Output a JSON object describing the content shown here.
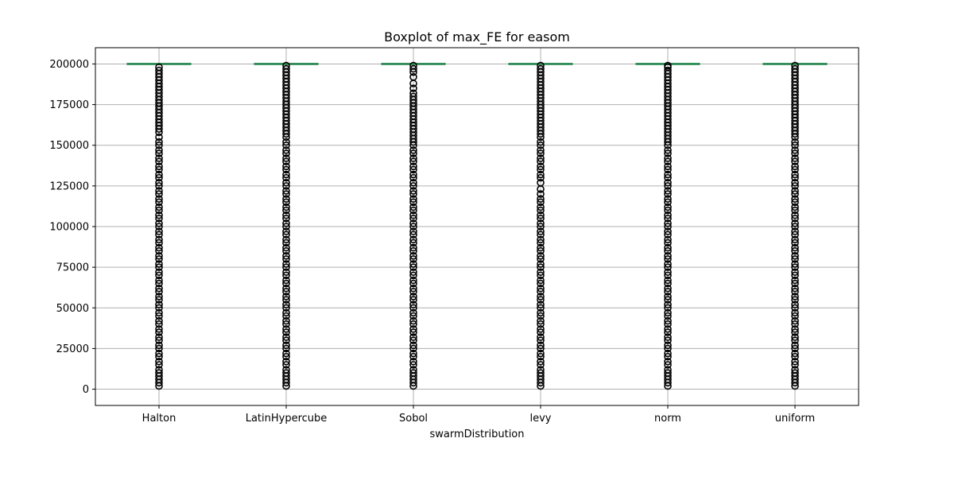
{
  "chart_data": {
    "type": "boxplot",
    "title": "Boxplot of max_FE for easom",
    "xlabel": "swarmDistribution",
    "ylabel": "",
    "categories": [
      "Halton",
      "LatinHypercube",
      "Sobol",
      "levy",
      "norm",
      "uniform"
    ],
    "ylim": [
      -10000,
      210000
    ],
    "yticks": [
      0,
      25000,
      50000,
      75000,
      100000,
      125000,
      150000,
      175000,
      200000
    ],
    "grid": true,
    "colors": {
      "box": "#2e8b57",
      "outlier": "#000000",
      "grid": "#b0b0b0"
    },
    "series": [
      {
        "category": "Halton",
        "box": {
          "min": 200000,
          "q1": 200000,
          "median": 200000,
          "q3": 200000,
          "max": 200000
        },
        "outliers": [
          198000,
          196000,
          194000,
          192000,
          190000,
          188000,
          186000,
          184000,
          182000,
          180000,
          178000,
          176000,
          174000,
          172000,
          170000,
          168000,
          166000,
          164000,
          162000,
          160000,
          158000,
          155000,
          152000,
          150000,
          147000,
          145000,
          142000,
          140000,
          137000,
          135000,
          132000,
          130000,
          127000,
          125000,
          122000,
          120000,
          117000,
          115000,
          112000,
          110000,
          107000,
          105000,
          102000,
          100000,
          97000,
          95000,
          92000,
          90000,
          87000,
          85000,
          82000,
          80000,
          77000,
          75000,
          72000,
          70000,
          67000,
          65000,
          62000,
          60000,
          57000,
          55000,
          52000,
          50000,
          47000,
          45000,
          42000,
          40000,
          37000,
          35000,
          32000,
          30000,
          27000,
          25000,
          22000,
          20000,
          17000,
          15000,
          12000,
          10000,
          8000,
          6000,
          4000,
          2000
        ]
      },
      {
        "category": "LatinHypercube",
        "box": {
          "min": 200000,
          "q1": 200000,
          "median": 200000,
          "q3": 200000,
          "max": 200000
        },
        "outliers": [
          199000,
          197000,
          195000,
          193000,
          191000,
          189000,
          187000,
          185000,
          183000,
          181000,
          179000,
          177000,
          175000,
          173000,
          171000,
          169000,
          167000,
          165000,
          163000,
          161000,
          159000,
          157000,
          155000,
          152000,
          150000,
          147000,
          145000,
          142000,
          140000,
          137000,
          135000,
          132000,
          130000,
          127000,
          125000,
          122000,
          120000,
          117000,
          115000,
          112000,
          110000,
          107000,
          105000,
          102000,
          100000,
          97000,
          95000,
          92000,
          90000,
          87000,
          85000,
          82000,
          80000,
          77000,
          75000,
          72000,
          70000,
          67000,
          65000,
          62000,
          60000,
          57000,
          55000,
          52000,
          50000,
          47000,
          45000,
          42000,
          40000,
          37000,
          35000,
          32000,
          30000,
          27000,
          25000,
          22000,
          20000,
          17000,
          15000,
          12000,
          10000,
          8000,
          6000,
          4000,
          2000
        ]
      },
      {
        "category": "Sobol",
        "box": {
          "min": 200000,
          "q1": 200000,
          "median": 200000,
          "q3": 200000,
          "max": 200000
        },
        "outliers": [
          199000,
          197000,
          195000,
          192000,
          188000,
          185000,
          182000,
          180000,
          178000,
          176000,
          174000,
          172000,
          170000,
          168000,
          166000,
          164000,
          162000,
          160000,
          158000,
          156000,
          154000,
          152000,
          150000,
          147000,
          145000,
          142000,
          140000,
          137000,
          135000,
          132000,
          130000,
          127000,
          125000,
          122000,
          120000,
          117000,
          115000,
          112000,
          110000,
          107000,
          105000,
          102000,
          100000,
          97000,
          95000,
          92000,
          90000,
          87000,
          85000,
          82000,
          80000,
          77000,
          75000,
          72000,
          70000,
          67000,
          65000,
          62000,
          60000,
          57000,
          55000,
          52000,
          50000,
          47000,
          45000,
          42000,
          40000,
          37000,
          35000,
          32000,
          30000,
          27000,
          25000,
          22000,
          20000,
          17000,
          15000,
          12000,
          10000,
          8000,
          6000,
          4000,
          2000
        ]
      },
      {
        "category": "levy",
        "box": {
          "min": 200000,
          "q1": 200000,
          "median": 200000,
          "q3": 200000,
          "max": 200000
        },
        "outliers": [
          199000,
          197000,
          195000,
          193000,
          191000,
          189000,
          187000,
          185000,
          183000,
          181000,
          179000,
          177000,
          175000,
          173000,
          171000,
          169000,
          167000,
          165000,
          163000,
          161000,
          159000,
          157000,
          155000,
          152000,
          150000,
          147000,
          145000,
          142000,
          140000,
          137000,
          135000,
          132000,
          130000,
          127000,
          123000,
          120000,
          117000,
          115000,
          112000,
          110000,
          107000,
          105000,
          102000,
          100000,
          97000,
          95000,
          92000,
          90000,
          87000,
          85000,
          82000,
          80000,
          77000,
          75000,
          72000,
          70000,
          67000,
          65000,
          62000,
          60000,
          57000,
          55000,
          52000,
          50000,
          47000,
          45000,
          42000,
          40000,
          37000,
          35000,
          32000,
          30000,
          27000,
          25000,
          22000,
          20000,
          17000,
          15000,
          12000,
          10000,
          8000,
          6000,
          4000,
          2000
        ]
      },
      {
        "category": "norm",
        "box": {
          "min": 200000,
          "q1": 200000,
          "median": 200000,
          "q3": 200000,
          "max": 200000
        },
        "outliers": [
          199000,
          198000,
          196000,
          194000,
          192000,
          190000,
          188000,
          186000,
          184000,
          182000,
          180000,
          178000,
          176000,
          174000,
          172000,
          170000,
          168000,
          166000,
          164000,
          162000,
          160000,
          158000,
          156000,
          154000,
          152000,
          150000,
          147000,
          145000,
          142000,
          140000,
          137000,
          135000,
          132000,
          130000,
          127000,
          125000,
          122000,
          120000,
          117000,
          115000,
          112000,
          110000,
          107000,
          105000,
          102000,
          100000,
          97000,
          95000,
          92000,
          90000,
          87000,
          85000,
          82000,
          80000,
          77000,
          75000,
          72000,
          70000,
          67000,
          65000,
          62000,
          60000,
          57000,
          55000,
          52000,
          50000,
          47000,
          45000,
          42000,
          40000,
          37000,
          35000,
          32000,
          30000,
          27000,
          25000,
          22000,
          20000,
          17000,
          15000,
          12000,
          10000,
          8000,
          6000,
          4000,
          2000
        ]
      },
      {
        "category": "uniform",
        "box": {
          "min": 200000,
          "q1": 200000,
          "median": 200000,
          "q3": 200000,
          "max": 200000
        },
        "outliers": [
          199000,
          197000,
          195000,
          193000,
          191000,
          189000,
          187000,
          185000,
          183000,
          181000,
          179000,
          177000,
          175000,
          173000,
          171000,
          169000,
          167000,
          165000,
          163000,
          161000,
          159000,
          157000,
          155000,
          152000,
          150000,
          147000,
          145000,
          142000,
          140000,
          137000,
          135000,
          132000,
          130000,
          127000,
          125000,
          122000,
          120000,
          117000,
          115000,
          112000,
          110000,
          107000,
          105000,
          102000,
          100000,
          97000,
          95000,
          92000,
          90000,
          87000,
          85000,
          82000,
          80000,
          77000,
          75000,
          72000,
          70000,
          67000,
          65000,
          62000,
          60000,
          57000,
          55000,
          52000,
          50000,
          47000,
          45000,
          42000,
          40000,
          37000,
          35000,
          32000,
          30000,
          27000,
          25000,
          22000,
          20000,
          17000,
          15000,
          12000,
          10000,
          8000,
          6000,
          4000,
          2000
        ]
      }
    ]
  }
}
